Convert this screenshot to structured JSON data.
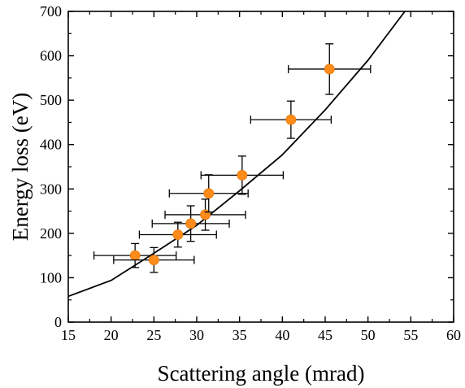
{
  "chart_data": {
    "type": "scatter",
    "xlabel": "Scattering angle (mrad)",
    "ylabel": "Energy loss (eV)",
    "xlim": [
      15,
      60
    ],
    "ylim": [
      0,
      700
    ],
    "xticks": [
      15,
      20,
      25,
      30,
      35,
      40,
      45,
      50,
      55,
      60
    ],
    "yticks": [
      0,
      100,
      200,
      300,
      400,
      500,
      600,
      700
    ],
    "grid": false,
    "legend": "none",
    "series": [
      {
        "type": "line",
        "color": "#000000",
        "x": [
          15,
          20,
          25,
          30,
          35,
          40,
          45,
          50,
          54.3
        ],
        "y": [
          58,
          94,
          155,
          218,
          296,
          377,
          478,
          590,
          700
        ]
      },
      {
        "type": "scatter",
        "color": "#ff8c1a",
        "points": [
          {
            "x": 22.8,
            "y": 150,
            "xerr": 4.8,
            "yerr": 27
          },
          {
            "x": 25.0,
            "y": 140,
            "xerr": 4.7,
            "yerr": 28
          },
          {
            "x": 27.8,
            "y": 197,
            "xerr": 4.5,
            "yerr": 28
          },
          {
            "x": 29.3,
            "y": 222,
            "xerr": 4.5,
            "yerr": 40
          },
          {
            "x": 31.0,
            "y": 242,
            "xerr": 4.7,
            "yerr": 35
          },
          {
            "x": 31.4,
            "y": 290,
            "xerr": 4.6,
            "yerr": 42
          },
          {
            "x": 35.3,
            "y": 331,
            "xerr": 4.8,
            "yerr": 43
          },
          {
            "x": 41.0,
            "y": 456,
            "xerr": 4.7,
            "yerr": 42
          },
          {
            "x": 45.5,
            "y": 570,
            "xerr": 4.8,
            "yerr": 57
          }
        ]
      }
    ]
  }
}
